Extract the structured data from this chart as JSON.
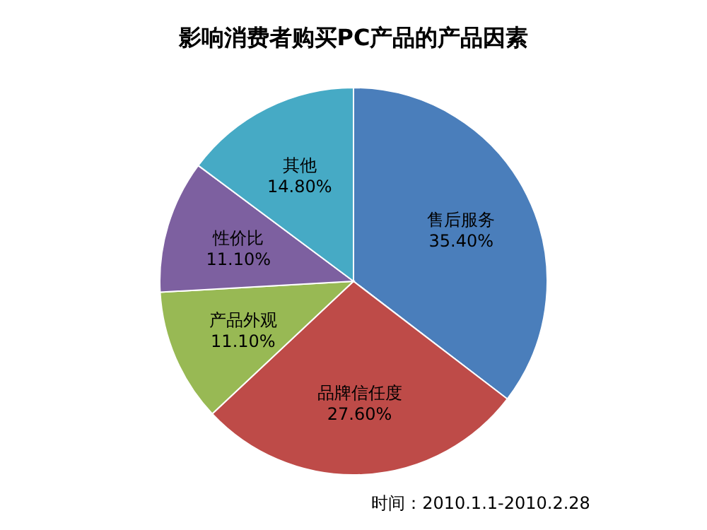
{
  "chart_data": {
    "type": "pie",
    "title": "影响消费者购买PC产品的产品因素",
    "categories": [
      "售后服务",
      "品牌信任度",
      "产品外观",
      "性价比",
      "其他"
    ],
    "values": [
      35.4,
      27.6,
      11.1,
      11.1,
      14.8
    ],
    "value_labels": [
      "35.40%",
      "27.60%",
      "11.10%",
      "11.10%",
      "14.80%"
    ],
    "colors": [
      "#4a7ebb",
      "#be4b48",
      "#98b954",
      "#7d60a0",
      "#46aac5"
    ],
    "annotations": [
      "时间：2010.1.1-2010.2.28"
    ]
  }
}
